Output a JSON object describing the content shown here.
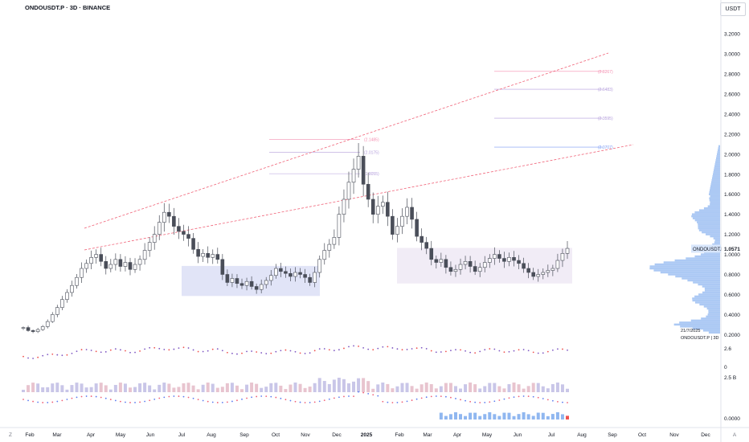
{
  "header": {
    "title": "ONDOUSDT.P · 3D · BINANCE",
    "currency": "USDT"
  },
  "footer": {
    "left_icon": "Z",
    "right_icon": "A"
  },
  "colors": {
    "up": "#26a69a",
    "down": "#ef5350",
    "candle_border": "#4a4e59",
    "trendline": "#f06277",
    "range_box": "#c9cdf0",
    "range_box_right": "#ebe4f2",
    "volume_profile": "#90b7f0",
    "fib_text": "#b58ad6",
    "price_label_bg": "#2962ff"
  },
  "chart_data": {
    "type": "candlestick",
    "symbol": "ONDOUSDT.P",
    "interval": "3D",
    "exchange": "BINANCE",
    "x_tick_labels": [
      "Feb",
      "Mar",
      "Apr",
      "May",
      "Jun",
      "Jul",
      "Aug",
      "Sep",
      "Oct",
      "Nov",
      "Dec",
      "2025",
      "Feb",
      "Mar",
      "Apr",
      "May",
      "Jun",
      "Jul",
      "Aug",
      "Sep",
      "Oct",
      "Nov",
      "Dec"
    ],
    "y_tick_labels": [
      "3.2000",
      "3.0000",
      "2.8000",
      "2.6000",
      "2.4000",
      "2.2000",
      "2.0000",
      "1.8000",
      "1.6000",
      "1.4000",
      "1.2000",
      "1.0000",
      "0.8000",
      "0.6000",
      "0.4000",
      "0.2000"
    ],
    "y_range": [
      0.15,
      3.25
    ],
    "last_price_label": "1.0571",
    "last_price_symbol": "ONDOUSDT.P",
    "date_label": "21/7/2025",
    "profile_label": "ONDOUSDT.P | 3D",
    "fib_labels": [
      "(2.8267)",
      "(2.6483)",
      "(2.3595)",
      "(2.0707)",
      "(2.1485)",
      "(2.0175)",
      "(1.8055)"
    ],
    "fib_levels": [
      2.8267,
      2.6483,
      2.3595,
      2.0707,
      2.1485,
      2.0175,
      1.8055
    ],
    "closes": [
      0.27,
      0.24,
      0.23,
      0.25,
      0.28,
      0.33,
      0.4,
      0.47,
      0.55,
      0.62,
      0.69,
      0.77,
      0.86,
      0.91,
      0.97,
      1.0,
      0.93,
      0.86,
      0.9,
      0.95,
      0.88,
      0.92,
      0.85,
      0.9,
      0.95,
      1.04,
      1.12,
      1.2,
      1.32,
      1.42,
      1.38,
      1.28,
      1.23,
      1.2,
      1.16,
      1.05,
      0.98,
      1.01,
      0.97,
      1.0,
      0.95,
      0.8,
      0.72,
      0.76,
      0.71,
      0.69,
      0.73,
      0.68,
      0.65,
      0.7,
      0.74,
      0.79,
      0.86,
      0.83,
      0.81,
      0.78,
      0.82,
      0.8,
      0.77,
      0.72,
      0.82,
      0.95,
      1.04,
      1.1,
      1.17,
      1.4,
      1.55,
      1.72,
      1.85,
      1.98,
      1.7,
      1.55,
      1.4,
      1.48,
      1.52,
      1.38,
      1.2,
      1.28,
      1.38,
      1.47,
      1.35,
      1.18,
      1.12,
      1.06,
      0.95,
      0.92,
      0.95,
      0.87,
      0.83,
      0.85,
      0.9,
      0.93,
      0.88,
      0.83,
      0.87,
      0.92,
      0.96,
      1.0,
      0.96,
      0.93,
      0.97,
      0.94,
      0.91,
      0.86,
      0.82,
      0.78,
      0.8,
      0.82,
      0.84,
      0.86,
      0.94,
      1.01,
      1.06
    ],
    "indicators": [
      {
        "label": "2.6"
      },
      {
        "label": "0"
      },
      {
        "label": "2.5 B"
      },
      {
        "label": "0.0000"
      }
    ]
  }
}
